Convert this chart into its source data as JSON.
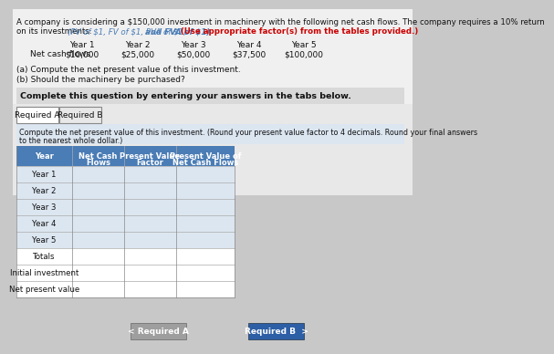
{
  "title_text": "A company is considering a $150,000 investment in machinery with the following net cash flows. The company requires a 10% return\non its investments. (PV of $1, FV of $1, PVA of $1, and FVA of $1) (Use appropriate factor(s) from the tables provided.)",
  "title_normal": "A company is considering a $150,000 investment in machinery with the following net cash flows. The company requires a 10% return\non its investments. ",
  "title_pv": "(PV of $1, FV of $1, PVA of $1,",
  "title_bold": " and FVA of $1)",
  "title_red": " (Use appropriate factor(s) from the tables provided.)",
  "cash_flow_label": "Net cash flows",
  "years": [
    "Year 1",
    "Year 2",
    "Year 3",
    "Year 4",
    "Year 5"
  ],
  "cash_flows": [
    "$10,000",
    "$25,000",
    "$50,000",
    "$37,500",
    "$100,000"
  ],
  "question_a": "(a) Compute the net present value of this investment.",
  "question_b": "(b) Should the machinery be purchased?",
  "complete_text": "Complete this question by entering your answers in the tabs below.",
  "tab1": "Required A",
  "tab2": "Required B",
  "instruction": "Compute the net present value of this investment. (Round your present value factor to 4 decimals. Round your final answers\nto the nearest whole dollar.)",
  "table_header": [
    "Year",
    "Net Cash\nFlows",
    "Present Value\nFactor",
    "Present Value of\nNet Cash Flows"
  ],
  "table_rows": [
    "Year 1",
    "Year 2",
    "Year 3",
    "Year 4",
    "Year 5",
    "Totals",
    "Initial investment",
    "Net present value"
  ],
  "header_bg": "#4a7cb5",
  "header_text_color": "#ffffff",
  "row_bg_shaded": "#dce6f1",
  "row_bg_white": "#ffffff",
  "tab_active_bg": "#ffffff",
  "tab_inactive_bg": "#e8e8e8",
  "complete_bg": "#d9d9d9",
  "instruction_bg": "#dce6f1",
  "btn_req_a_bg": "#9e9e9e",
  "btn_req_b_bg": "#2d5fa6",
  "bg_color": "#c8c8c8",
  "link_color": "#4a7cb5",
  "red_color": "#cc0000"
}
